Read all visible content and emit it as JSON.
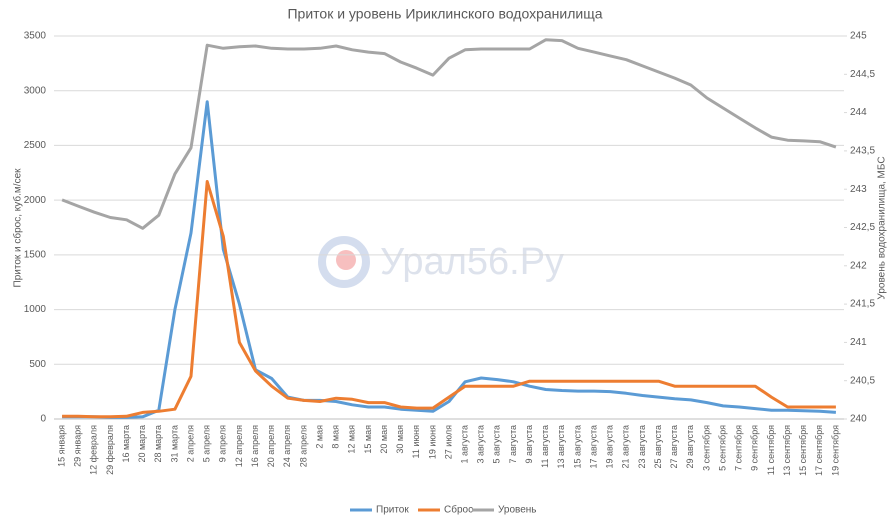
{
  "chart_data": {
    "type": "line",
    "title": "Приток и уровень Ириклинского водохранилища",
    "ylabel": "Приток и сброс, куб.м/сек",
    "y2label": "Уровень водохранилища, МБС",
    "watermark": "Урал56.Ру",
    "categories": [
      "15 января",
      "29 января",
      "12 февраля",
      "29 февраля",
      "16 марта",
      "20 марта",
      "28 марта",
      "31 марта",
      "2 апреля",
      "5 апреля",
      "9 апреля",
      "12 апреля",
      "16 апреля",
      "20 апреля",
      "24 апреля",
      "28 апреля",
      "2 мая",
      "8 мая",
      "12 мая",
      "15 мая",
      "20 мая",
      "30 мая",
      "11 июня",
      "19 июня",
      "27 июля",
      "1 августа",
      "3 августа",
      "5 августа",
      "7 августа",
      "9 августа",
      "11 августа",
      "13 августа",
      "15 августа",
      "17 августа",
      "19 августа",
      "21 августа",
      "23 августа",
      "25 августа",
      "27 августа",
      "29 августа",
      "3 сентября",
      "5 сентября",
      "7 сентября",
      "9 сентября",
      "11 сентября",
      "13 сентября",
      "15 сентября",
      "17 сентября",
      "19 сентября"
    ],
    "series": [
      {
        "name": "Приток",
        "color": "#5b9bd5",
        "values": [
          20,
          20,
          20,
          15,
          15,
          20,
          80,
          1000,
          1700,
          2900,
          1550,
          1050,
          450,
          370,
          200,
          170,
          170,
          160,
          130,
          110,
          110,
          90,
          80,
          70,
          160,
          340,
          375,
          360,
          340,
          300,
          270,
          260,
          255,
          255,
          250,
          235,
          215,
          200,
          185,
          175,
          150,
          120,
          110,
          95,
          80,
          80,
          75,
          70,
          60
        ]
      },
      {
        "name": "Сброс",
        "color": "#ed7d31",
        "values": [
          25,
          25,
          20,
          20,
          25,
          60,
          70,
          90,
          390,
          2170,
          1670,
          700,
          440,
          300,
          190,
          170,
          160,
          190,
          180,
          150,
          150,
          110,
          100,
          100,
          200,
          300,
          300,
          300,
          300,
          345,
          345,
          345,
          345,
          345,
          345,
          345,
          345,
          345,
          300,
          300,
          300,
          300,
          300,
          300,
          200,
          110,
          110,
          110,
          110
        ]
      },
      {
        "name": "Уровень",
        "color": "#a5a5a5",
        "axis": "y2",
        "values": [
          242.86,
          242.78,
          242.7,
          242.63,
          242.6,
          242.49,
          242.66,
          243.2,
          243.54,
          244.88,
          244.84,
          244.86,
          244.87,
          244.84,
          244.83,
          244.83,
          244.84,
          244.87,
          244.82,
          244.79,
          244.77,
          244.66,
          244.58,
          244.49,
          244.71,
          244.82,
          244.83,
          244.83,
          244.83,
          244.83,
          244.95,
          244.94,
          244.84,
          244.79,
          244.74,
          244.69,
          244.61,
          244.53,
          244.45,
          244.36,
          244.19,
          244.06,
          243.93,
          243.8,
          243.68,
          243.64,
          243.63,
          243.62,
          243.55
        ]
      }
    ],
    "ylim": [
      0,
      3500
    ],
    "yticks": [
      0,
      500,
      1000,
      1500,
      2000,
      2500,
      3000,
      3500
    ],
    "y2lim": [
      240,
      245
    ],
    "y2ticks": [
      240,
      {
        "value": 240.5,
        "label": "240,5"
      },
      241,
      {
        "value": 241.5,
        "label": "241,5"
      },
      242,
      {
        "value": 242.5,
        "label": "242,5"
      },
      243,
      {
        "value": 243.5,
        "label": "243,5"
      },
      244,
      {
        "value": 244.5,
        "label": "244,5"
      },
      245
    ],
    "grid": true,
    "legend": "bottom"
  }
}
